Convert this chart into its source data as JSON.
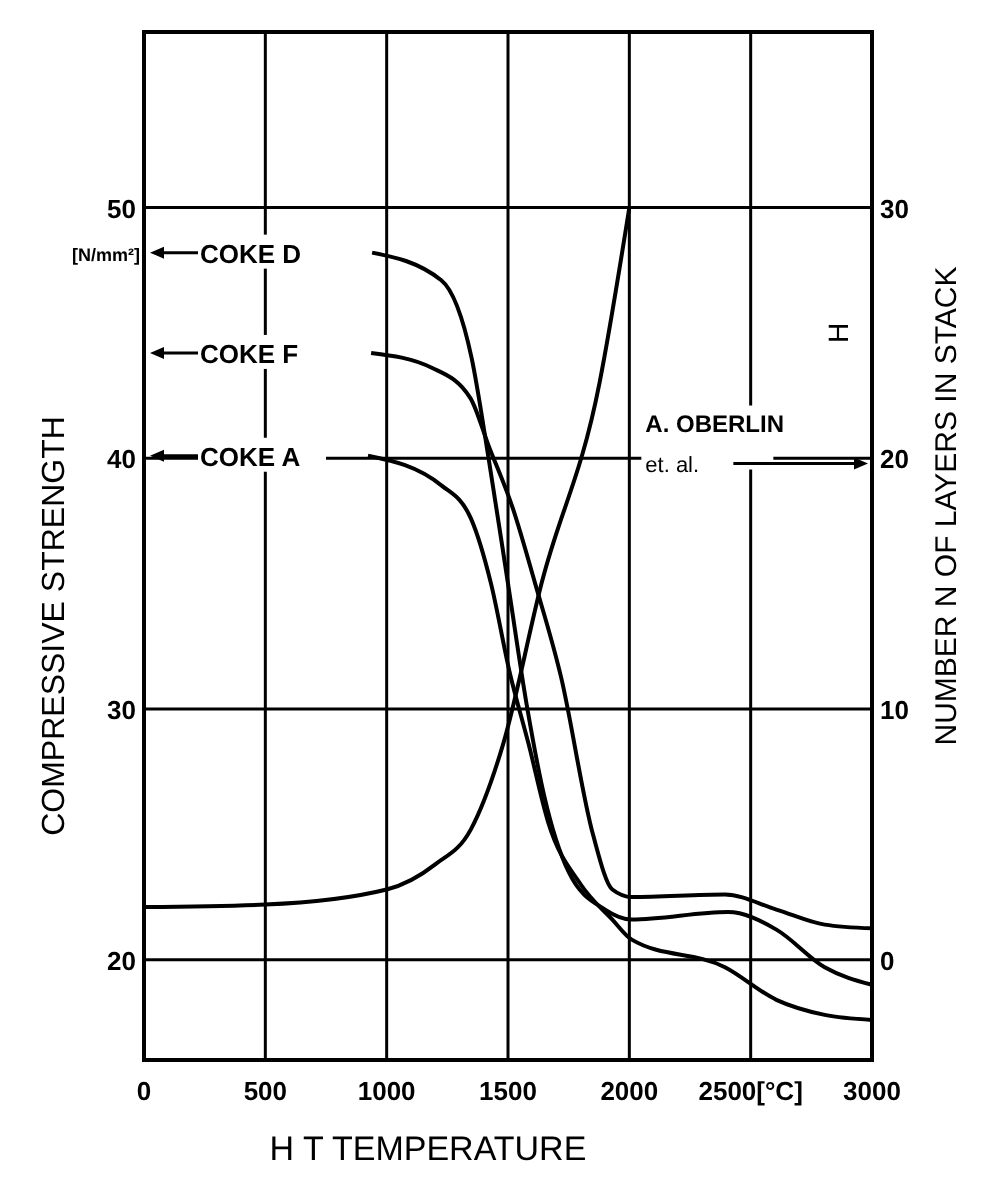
{
  "chart_data": {
    "type": "line",
    "xlabel": "H T TEMPERATURE",
    "ylabel": "COMPRESSIVE STRENGTH",
    "y2label": "NUMBER N OF LAYERS IN STACK",
    "xlim": [
      0,
      3000
    ],
    "xticks": [
      0,
      500,
      1000,
      1500,
      2000,
      {
        "value": 2500,
        "label": "2500[°C]"
      },
      3000
    ],
    "ylim": [
      16,
      57
    ],
    "yticks": [
      20,
      30,
      40,
      50
    ],
    "y2lim": [
      -4,
      37
    ],
    "y2ticks": [
      0,
      10,
      20,
      30
    ],
    "grid": true,
    "legend": "top left",
    "series": [
      {
        "name": "COKE D",
        "color": "#000000",
        "x": [
          940,
          1225,
          1350,
          1420,
          1500,
          1580,
          1650,
          1750,
          1900,
          2010,
          2407,
          2606,
          2805,
          3000
        ],
        "values": [
          48.2,
          47.1,
          44,
          40,
          35,
          30,
          26.5,
          23.5,
          22,
          21.6,
          21.9,
          21.2,
          19.7,
          19.0
        ]
      },
      {
        "name": "COKE F",
        "color": "#000000",
        "x": [
          936,
          1188,
          1345,
          1420,
          1520,
          1612,
          1718,
          1850,
          1930,
          2010,
          2394,
          2606,
          2805,
          3000
        ],
        "values": [
          44.2,
          43.6,
          42.4,
          40.5,
          38,
          35,
          31.3,
          25,
          22.8,
          22.5,
          22.6,
          22,
          21.4,
          21.25
        ]
      },
      {
        "name": "COKE A",
        "color": "#000000",
        "x": [
          923,
          1228,
          1347,
          1430,
          1506,
          1585,
          1665,
          1800,
          1930,
          2010,
          2394,
          2606,
          2805,
          3000
        ],
        "values": [
          40.1,
          38.9,
          37.6,
          35,
          31.5,
          28.6,
          25.5,
          23,
          21.6,
          20.8,
          19.7,
          18.4,
          17.8,
          17.6
        ]
      },
      {
        "name": "A. OBERLIN et. al.",
        "color": "#000000",
        "axis": "y2",
        "x": [
          0,
          500,
          1000,
          1200,
          1347,
          1480,
          1638,
          1877,
          2000
        ],
        "values": [
          2.1,
          2.2,
          2.8,
          3.8,
          5.2,
          8.6,
          15,
          23,
          30
        ]
      }
    ],
    "annotations": [
      "[N/mm²]",
      "H"
    ]
  }
}
